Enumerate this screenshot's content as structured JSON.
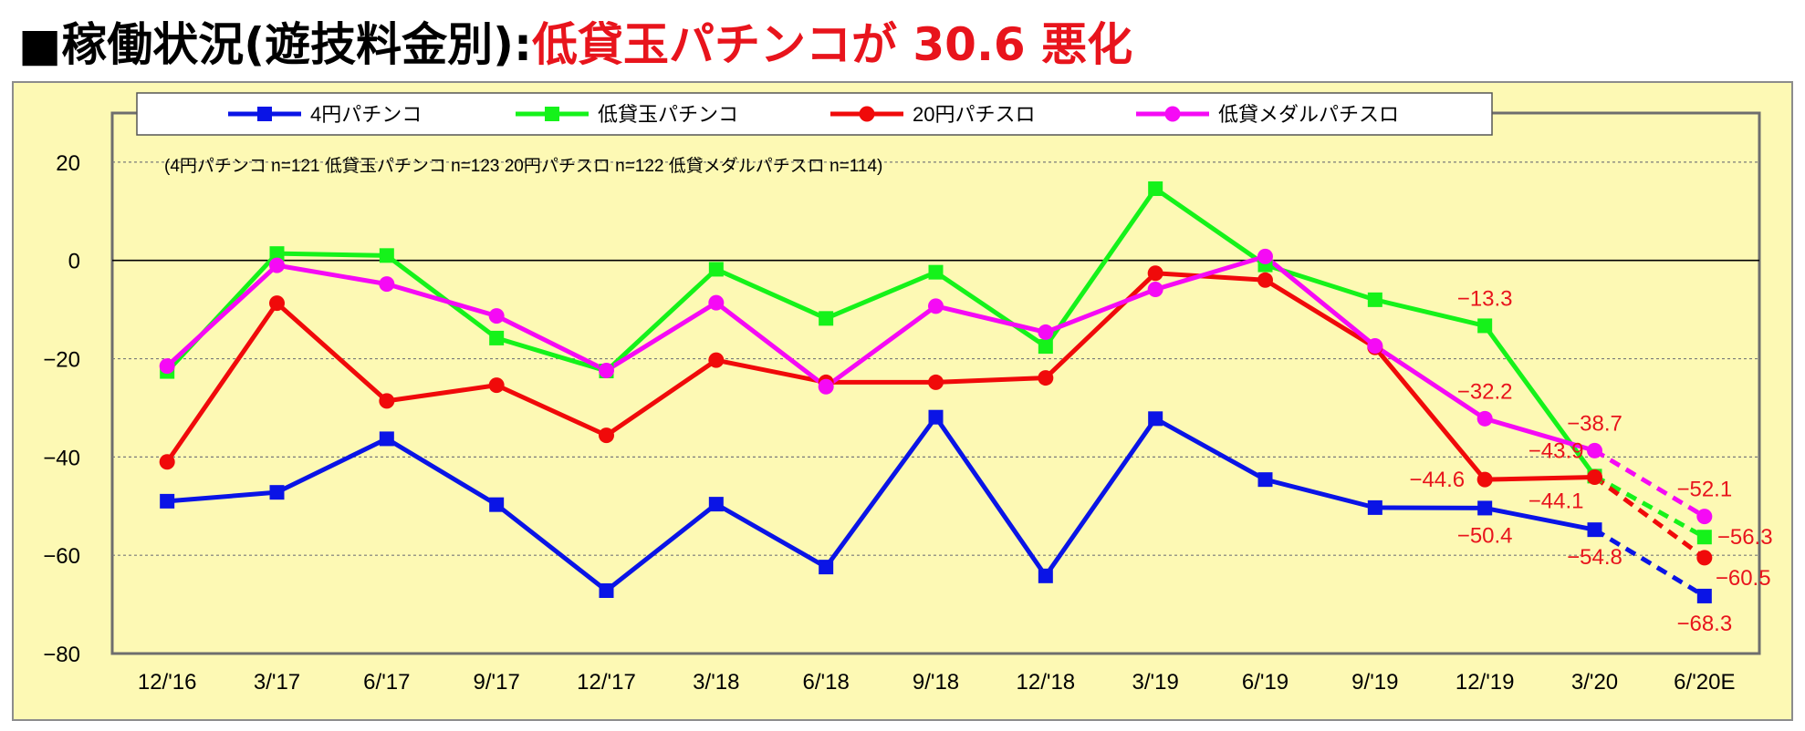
{
  "title": {
    "main": "■稼働状況(遊技料金別):",
    "highlight": "低貸玉パチンコが 30.6 悪化"
  },
  "colors": {
    "plot_bg": "#fdf9b4",
    "frame": "#8c8c8c",
    "title_red": "#e8141c",
    "annotation": "#e8141c"
  },
  "chart_data": {
    "type": "line",
    "title": "",
    "xlabel": "",
    "ylabel": "",
    "categories": [
      "12/'16",
      "3/'17",
      "6/'17",
      "9/'17",
      "12/'17",
      "3/'18",
      "6/'18",
      "9/'18",
      "12/'18",
      "3/'19",
      "6/'19",
      "9/'19",
      "12/'19",
      "3/'20",
      "6/'20E"
    ],
    "ylim": [
      -80,
      30
    ],
    "yticks": [
      20,
      0,
      -20,
      -40,
      -60,
      -80
    ],
    "ytick_labels": [
      "20",
      "0",
      "−20",
      "−40",
      "−60",
      "−80"
    ],
    "grid": "horizontal dotted",
    "legend_position": "top",
    "sample_note": "(4円パチンコ n=121 低貸玉パチンコ n=123 20円パチスロ n=122 低貸メダルパチスロ n=114)",
    "forecast_from_index": 13,
    "series": [
      {
        "name": "4円パチンコ",
        "color": "#0a14e6",
        "marker": "square",
        "values": [
          -49.0,
          -47.2,
          -36.3,
          -49.7,
          -67.2,
          -49.6,
          -62.4,
          -31.9,
          -64.2,
          -32.2,
          -44.6,
          -50.3,
          -50.4,
          -54.8,
          -68.3
        ]
      },
      {
        "name": "低貸玉パチンコ",
        "color": "#15f21a",
        "marker": "square",
        "values": [
          -22.6,
          1.4,
          1.0,
          -15.8,
          -22.5,
          -1.8,
          -11.8,
          -2.4,
          -17.5,
          14.6,
          -0.9,
          -8.0,
          -13.3,
          -43.9,
          -56.3
        ]
      },
      {
        "name": "20円パチスロ",
        "color": "#f00a0a",
        "marker": "circle",
        "values": [
          -41.0,
          -8.7,
          -28.6,
          -25.4,
          -35.6,
          -20.3,
          -24.8,
          -24.8,
          -23.9,
          -2.6,
          -4.0,
          -17.7,
          -44.6,
          -44.1,
          -60.5
        ]
      },
      {
        "name": "低貸メダルパチスロ",
        "color": "#f50af5",
        "marker": "circle",
        "values": [
          -21.5,
          -1.0,
          -4.8,
          -11.3,
          -22.4,
          -8.6,
          -25.7,
          -9.3,
          -14.6,
          -5.9,
          0.8,
          -17.4,
          -32.2,
          -38.7,
          -52.1
        ]
      }
    ],
    "annotations": [
      {
        "text": "−13.3",
        "x": "12/'19",
        "y": -13.3,
        "anchor": "above"
      },
      {
        "text": "−32.2",
        "x": "12/'19",
        "y": -32.2,
        "anchor": "above"
      },
      {
        "text": "−44.6",
        "x": "12/'19",
        "y": -44.6,
        "anchor": "left"
      },
      {
        "text": "−50.4",
        "x": "12/'19",
        "y": -50.4,
        "anchor": "below"
      },
      {
        "text": "−38.7",
        "x": "3/'20",
        "y": -38.7,
        "anchor": "above"
      },
      {
        "text": "−43.9",
        "x": "3/'20",
        "y": -43.9,
        "anchor": "above-left"
      },
      {
        "text": "−44.1",
        "x": "3/'20",
        "y": -44.1,
        "anchor": "below-left"
      },
      {
        "text": "−54.8",
        "x": "3/'20",
        "y": -54.8,
        "anchor": "below"
      },
      {
        "text": "−52.1",
        "x": "6/'20E",
        "y": -52.1,
        "anchor": "above"
      },
      {
        "text": "−56.3",
        "x": "6/'20E",
        "y": -56.3,
        "anchor": "right"
      },
      {
        "text": "−60.5",
        "x": "6/'20E",
        "y": -60.5,
        "anchor": "below-right"
      },
      {
        "text": "−68.3",
        "x": "6/'20E",
        "y": -68.3,
        "anchor": "below"
      }
    ]
  }
}
